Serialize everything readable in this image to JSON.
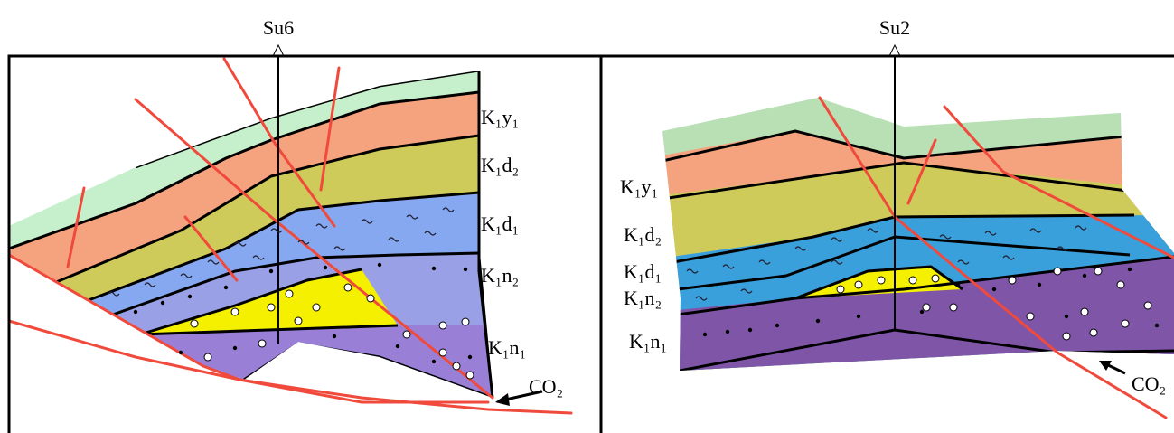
{
  "panels": [
    {
      "well": "Su6",
      "layers": [
        "K₁y₁",
        "K₁d₂",
        "K₁d₁",
        "K₁n₂",
        "K₁n₁"
      ],
      "gas": "CO₂"
    },
    {
      "well": "Su2",
      "layers": [
        "K₁y₁",
        "K₁d₂",
        "K₁d₁",
        "K₁n₂",
        "K₁n₁"
      ],
      "gas": "CO₂"
    }
  ]
}
